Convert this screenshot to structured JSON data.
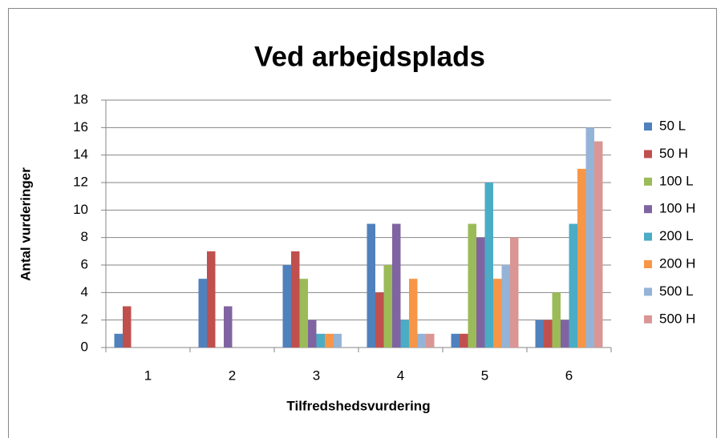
{
  "chart_data": {
    "type": "bar",
    "title": "Ved arbejdsplads",
    "x_label": "Tilfredshedsvurdering",
    "y_label": "Antal vurderinger",
    "categories": [
      "1",
      "2",
      "3",
      "4",
      "5",
      "6"
    ],
    "series": [
      {
        "name": "50 L",
        "color": "#4f81bd",
        "values": [
          1,
          5,
          6,
          9,
          1,
          2
        ]
      },
      {
        "name": "50 H",
        "color": "#c0504d",
        "values": [
          3,
          7,
          7,
          4,
          1,
          2
        ]
      },
      {
        "name": "100 L",
        "color": "#9bbb59",
        "values": [
          0,
          0,
          5,
          6,
          9,
          4
        ]
      },
      {
        "name": "100 H",
        "color": "#8064a2",
        "values": [
          0,
          3,
          2,
          9,
          8,
          2
        ]
      },
      {
        "name": "200 L",
        "color": "#4bacc6",
        "values": [
          0,
          0,
          1,
          2,
          12,
          9
        ]
      },
      {
        "name": "200 H",
        "color": "#f79646",
        "values": [
          0,
          0,
          1,
          5,
          5,
          13
        ]
      },
      {
        "name": "500 L",
        "color": "#95b3d7",
        "values": [
          0,
          0,
          1,
          1,
          6,
          16
        ]
      },
      {
        "name": "500 H",
        "color": "#d99694",
        "values": [
          0,
          0,
          0,
          1,
          8,
          15
        ]
      }
    ],
    "ylim": [
      0,
      18
    ],
    "yticks": [
      0,
      2,
      4,
      6,
      8,
      10,
      12,
      14,
      16,
      18
    ],
    "grid": true,
    "legend": "right"
  }
}
